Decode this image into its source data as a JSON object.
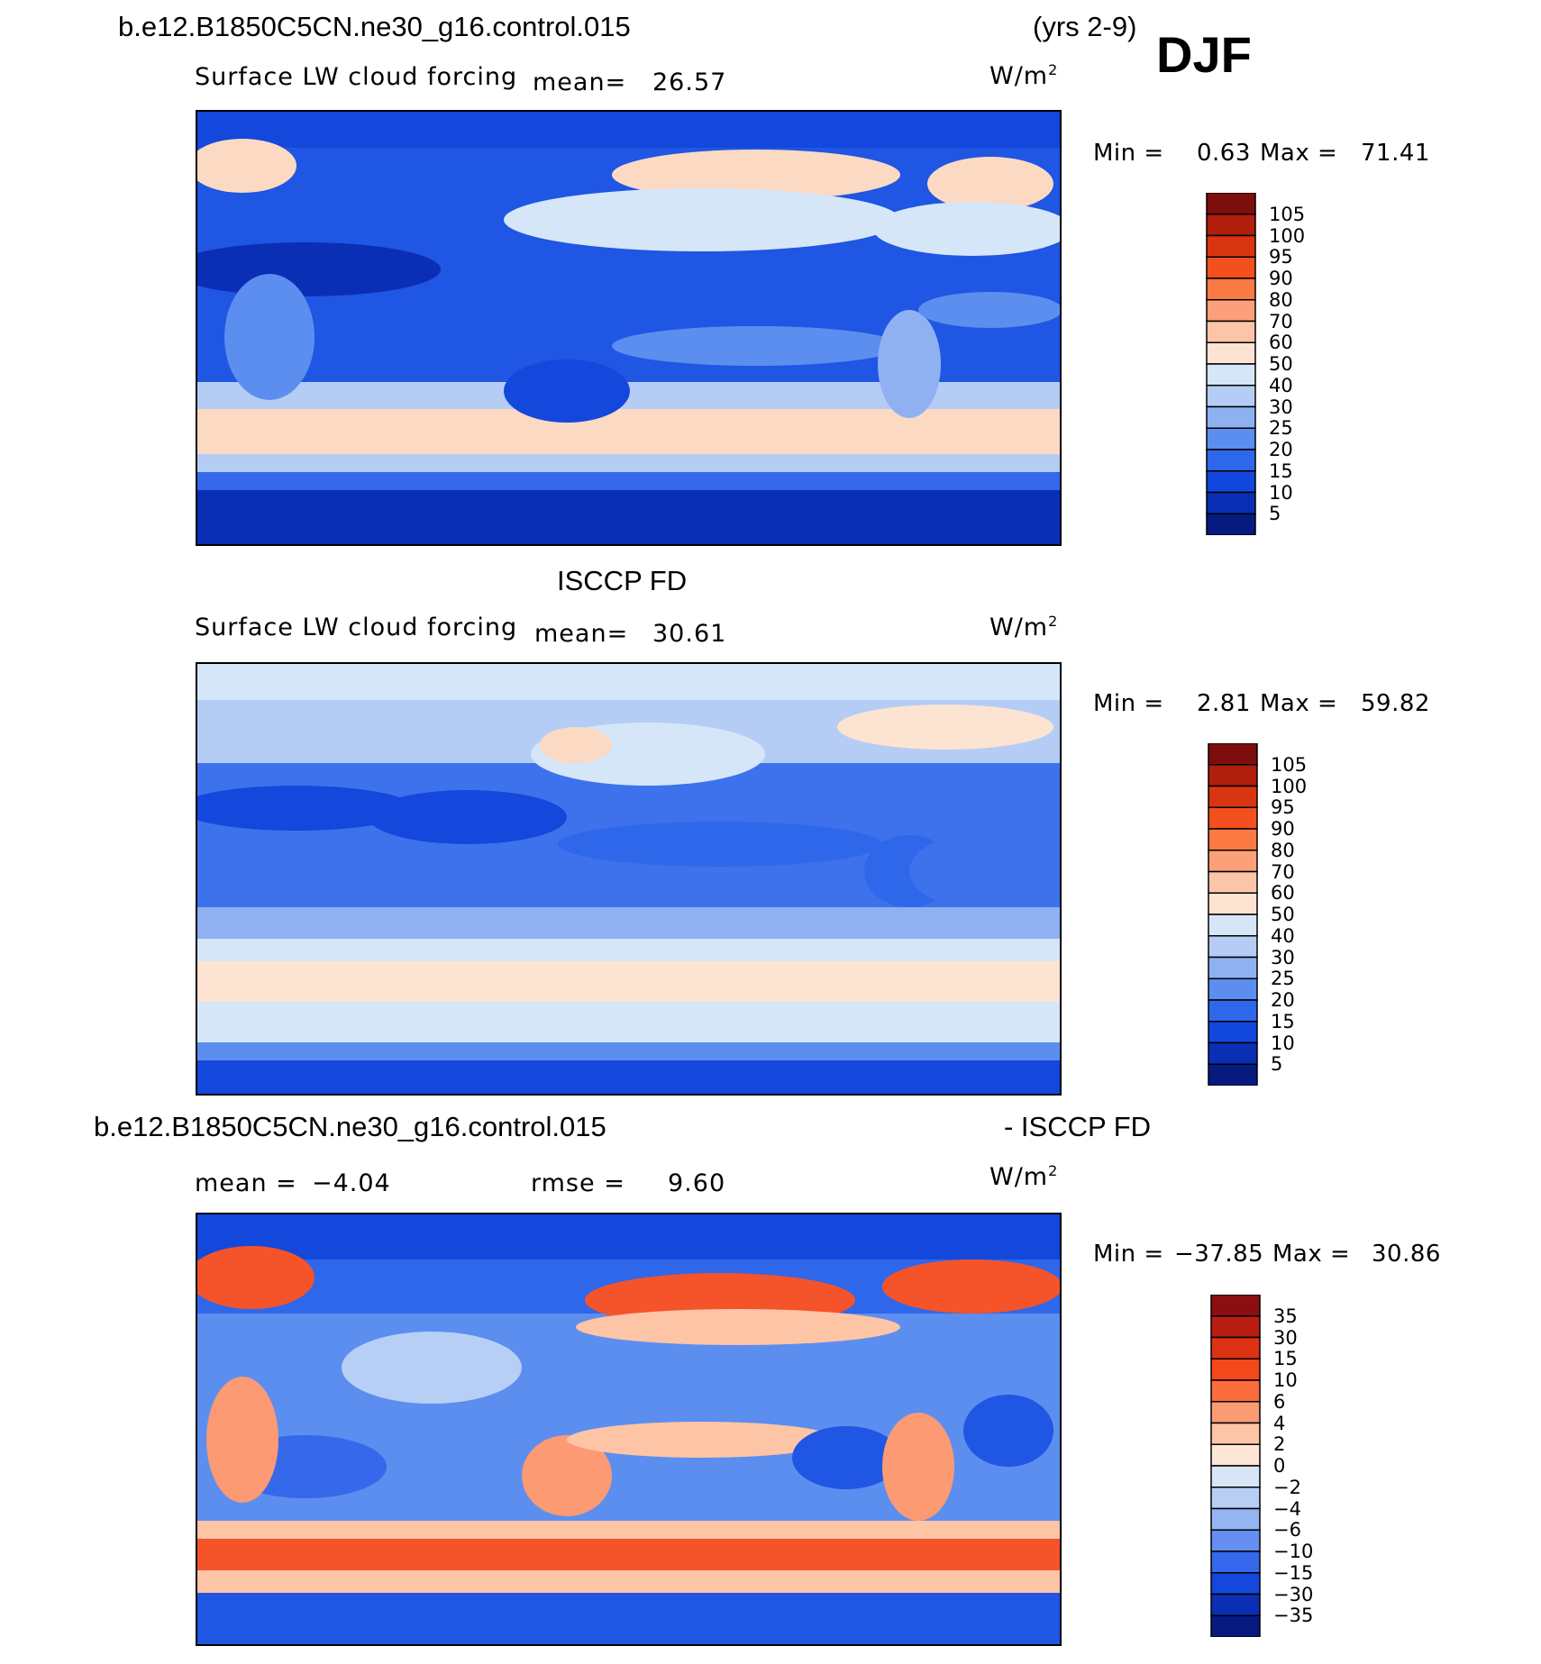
{
  "header": {
    "case_name": "b.e12.B1850C5CN.ne30_g16.control.015",
    "years": "(yrs 2-9)",
    "season": "DJF"
  },
  "panels": [
    {
      "id": "model",
      "variable": "Surface LW cloud forcing",
      "mean_label": "mean=",
      "mean_value": "26.57",
      "units": "W/m",
      "units_sup": "2",
      "min_label": "Min =",
      "min_value": "0.63",
      "max_label": "Max =",
      "max_value": "71.41",
      "colorbar": {
        "labels": [
          "105",
          "100",
          "95",
          "90",
          "80",
          "70",
          "60",
          "50",
          "40",
          "30",
          "25",
          "20",
          "15",
          "10",
          "5"
        ],
        "colors": [
          "#7e0d0d",
          "#b01e0c",
          "#d93510",
          "#f44f1e",
          "#fb7a44",
          "#fca07a",
          "#fcc5a8",
          "#fde4d2",
          "#d6e6f9",
          "#b5cdf5",
          "#8fb1f2",
          "#5c8ef0",
          "#2f67ea",
          "#1147dd",
          "#0a2fb5",
          "#061a80"
        ]
      }
    },
    {
      "id": "obs",
      "title": "ISCCP FD",
      "variable": "Surface LW cloud forcing",
      "mean_label": "mean=",
      "mean_value": "30.61",
      "units": "W/m",
      "units_sup": "2",
      "min_label": "Min =",
      "min_value": "2.81",
      "max_label": "Max =",
      "max_value": "59.82",
      "colorbar": {
        "labels": [
          "105",
          "100",
          "95",
          "90",
          "80",
          "70",
          "60",
          "50",
          "40",
          "30",
          "25",
          "20",
          "15",
          "10",
          "5"
        ],
        "colors": [
          "#7e0d0d",
          "#b01e0c",
          "#d93510",
          "#f44f1e",
          "#fb7a44",
          "#fca07a",
          "#fcc5a8",
          "#fde4d2",
          "#d6e6f9",
          "#b5cdf5",
          "#8fb1f2",
          "#5c8ef0",
          "#2f67ea",
          "#1147dd",
          "#0a2fb5",
          "#061a80"
        ]
      }
    },
    {
      "id": "diff",
      "title_left": "b.e12.B1850C5CN.ne30_g16.control.015",
      "title_right": "- ISCCP FD",
      "mean_label": "mean =",
      "mean_value": "−4.04",
      "rmse_label": "rmse =",
      "rmse_value": "9.60",
      "units": "W/m",
      "units_sup": "2",
      "min_label": "Min =",
      "min_value": "−37.85",
      "max_label": "Max =",
      "max_value": "30.86",
      "colorbar": {
        "labels": [
          "35",
          "30",
          "15",
          "10",
          "6",
          "4",
          "2",
          "0",
          "−2",
          "−4",
          "−6",
          "−10",
          "−15",
          "−30",
          "−35"
        ],
        "colors": [
          "#8b0f10",
          "#b81d12",
          "#dd3214",
          "#f5471c",
          "#fb6c3d",
          "#fc9a73",
          "#fdc4a6",
          "#fde6d6",
          "#d8e7f8",
          "#b8cff5",
          "#94b4f3",
          "#648ff0",
          "#3568ea",
          "#1347de",
          "#0b2fb4",
          "#061a80"
        ]
      }
    }
  ]
}
